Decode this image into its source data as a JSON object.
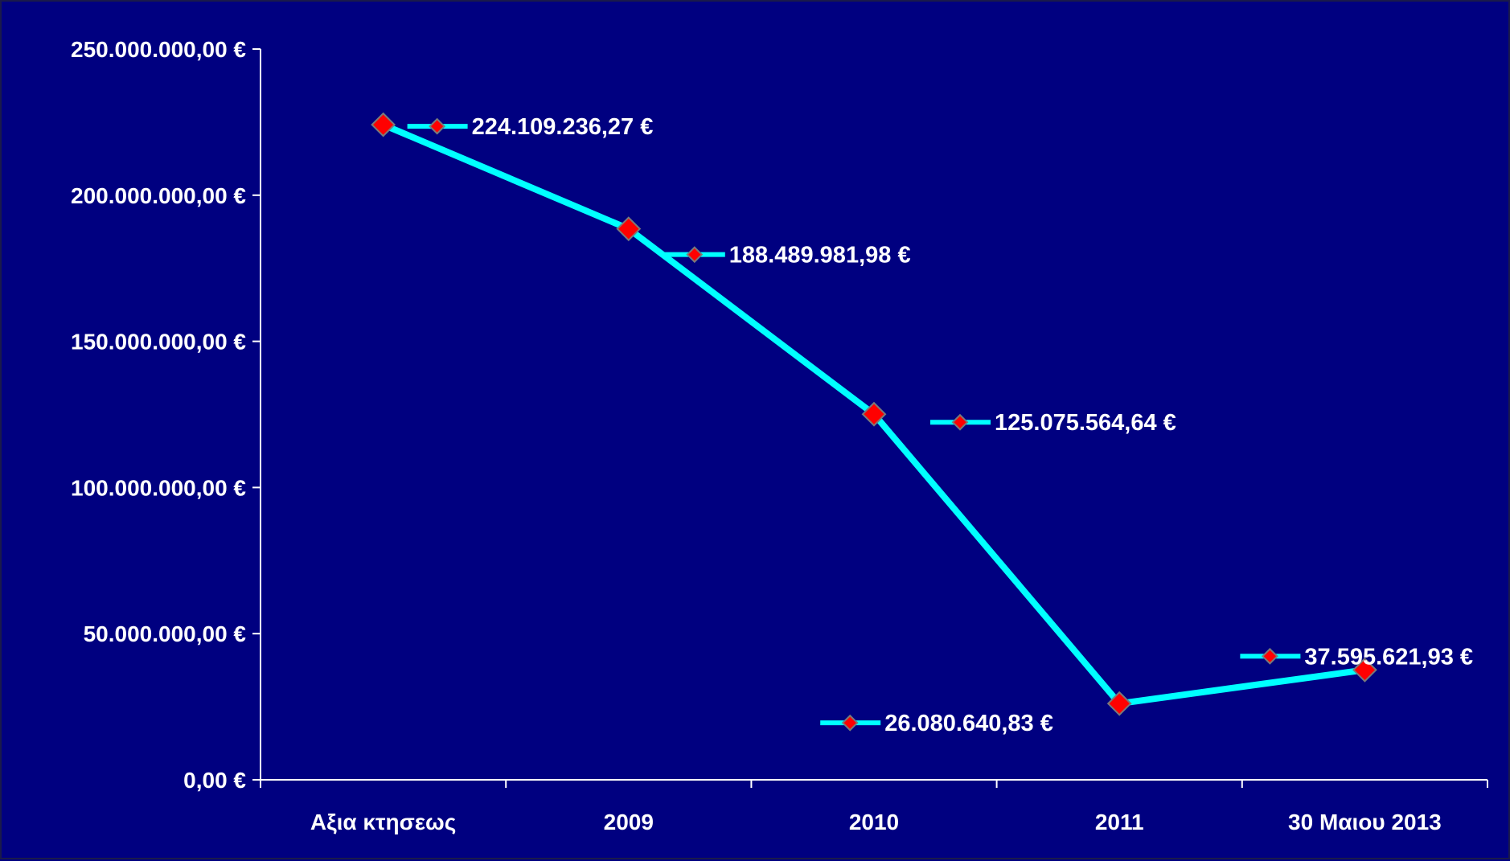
{
  "chart_data": {
    "type": "line",
    "title": "",
    "xlabel": "",
    "ylabel": "",
    "categories": [
      "Αξια κτησεως",
      "2009",
      "2010",
      "2011",
      "30 Μαιου 2013"
    ],
    "series": [
      {
        "values": [
          224109236.27,
          188489981.98,
          125075564.64,
          26080640.83,
          37595621.93
        ],
        "labels": [
          "224.109.236,27 €",
          "188.489.981,98 €",
          "125.075.564,64 €",
          "26.080.640,83 €",
          "37.595.621,93 €"
        ]
      }
    ],
    "ylim": [
      0,
      250000000
    ],
    "yticks": [
      0,
      50000000,
      100000000,
      150000000,
      200000000,
      250000000
    ],
    "ytick_labels": [
      "0,00 €",
      "50.000.000,00 €",
      "100.000.000,00 €",
      "150.000.000,00 €",
      "200.000.000,00 €",
      "250.000.000,00 €"
    ],
    "grid": false,
    "legend": "none",
    "colors": {
      "background": "#000080",
      "line": "#00ffff",
      "marker_fill": "#ff0000",
      "axis": "#ffffff",
      "text": "#ffffff"
    }
  }
}
